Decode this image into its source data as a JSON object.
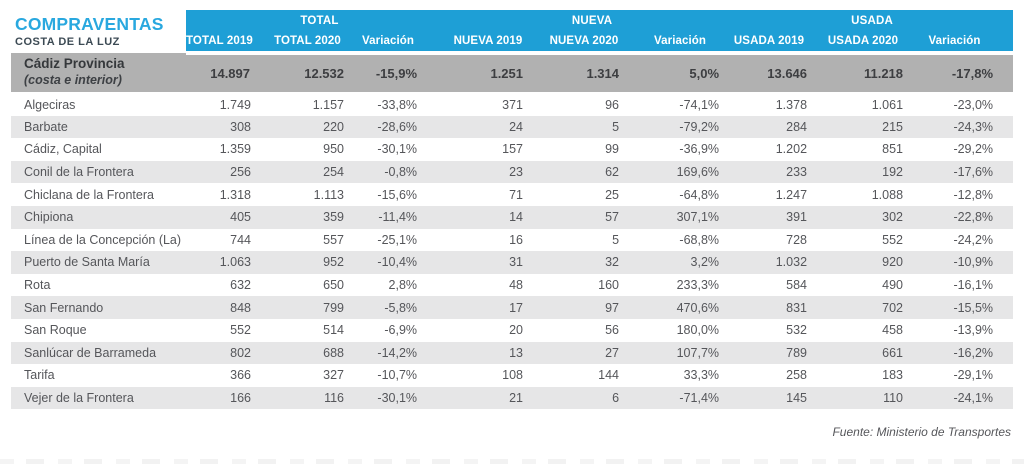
{
  "title": {
    "main": "COMPRAVENTAS",
    "sub": "COSTA DE LA LUZ"
  },
  "table": {
    "groups": [
      {
        "label": "TOTAL"
      },
      {
        "label": "NUEVA"
      },
      {
        "label": "USADA"
      }
    ],
    "columns": [
      "TOTAL 2019",
      "TOTAL 2020",
      "Variación",
      "NUEVA 2019",
      "NUEVA 2020",
      "Variación",
      "USADA 2019",
      "USADA 2020",
      "Variación"
    ],
    "province_row": {
      "name": "Cádiz Provincia",
      "subname": "(costa e interior)",
      "values": [
        "14.897",
        "12.532",
        "-15,9%",
        "1.251",
        "1.314",
        "5,0%",
        "13.646",
        "11.218",
        "-17,8%"
      ]
    },
    "rows": [
      {
        "name": "Algeciras",
        "values": [
          "1.749",
          "1.157",
          "-33,8%",
          "371",
          "96",
          "-74,1%",
          "1.378",
          "1.061",
          "-23,0%"
        ]
      },
      {
        "name": "Barbate",
        "values": [
          "308",
          "220",
          "-28,6%",
          "24",
          "5",
          "-79,2%",
          "284",
          "215",
          "-24,3%"
        ]
      },
      {
        "name": "Cádiz, Capital",
        "values": [
          "1.359",
          "950",
          "-30,1%",
          "157",
          "99",
          "-36,9%",
          "1.202",
          "851",
          "-29,2%"
        ]
      },
      {
        "name": "Conil de la Frontera",
        "values": [
          "256",
          "254",
          "-0,8%",
          "23",
          "62",
          "169,6%",
          "233",
          "192",
          "-17,6%"
        ]
      },
      {
        "name": "Chiclana de la Frontera",
        "values": [
          "1.318",
          "1.113",
          "-15,6%",
          "71",
          "25",
          "-64,8%",
          "1.247",
          "1.088",
          "-12,8%"
        ]
      },
      {
        "name": "Chipiona",
        "values": [
          "405",
          "359",
          "-11,4%",
          "14",
          "57",
          "307,1%",
          "391",
          "302",
          "-22,8%"
        ]
      },
      {
        "name": "Línea de la Concepción (La)",
        "values": [
          "744",
          "557",
          "-25,1%",
          "16",
          "5",
          "-68,8%",
          "728",
          "552",
          "-24,2%"
        ]
      },
      {
        "name": "Puerto de Santa María",
        "values": [
          "1.063",
          "952",
          "-10,4%",
          "31",
          "32",
          "3,2%",
          "1.032",
          "920",
          "-10,9%"
        ]
      },
      {
        "name": "Rota",
        "values": [
          "632",
          "650",
          "2,8%",
          "48",
          "160",
          "233,3%",
          "584",
          "490",
          "-16,1%"
        ]
      },
      {
        "name": "San Fernando",
        "values": [
          "848",
          "799",
          "-5,8%",
          "17",
          "97",
          "470,6%",
          "831",
          "702",
          "-15,5%"
        ]
      },
      {
        "name": "San Roque",
        "values": [
          "552",
          "514",
          "-6,9%",
          "20",
          "56",
          "180,0%",
          "532",
          "458",
          "-13,9%"
        ]
      },
      {
        "name": "Sanlúcar de Barrameda",
        "values": [
          "802",
          "688",
          "-14,2%",
          "13",
          "27",
          "107,7%",
          "789",
          "661",
          "-16,2%"
        ]
      },
      {
        "name": "Tarifa",
        "values": [
          "366",
          "327",
          "-10,7%",
          "108",
          "144",
          "33,3%",
          "258",
          "183",
          "-29,1%"
        ]
      },
      {
        "name": "Vejer de la Frontera",
        "values": [
          "166",
          "116",
          "-30,1%",
          "21",
          "6",
          "-71,4%",
          "145",
          "110",
          "-24,1%"
        ]
      }
    ]
  },
  "footer": {
    "source": "Fuente: Ministerio de Transportes"
  },
  "colors": {
    "accent_blue": "#1E9FD6",
    "title_blue": "#29A8DF",
    "province_gray": "#B1B1B1",
    "row_alt_gray": "#E6E6E7",
    "text_dark": "#55565A"
  }
}
